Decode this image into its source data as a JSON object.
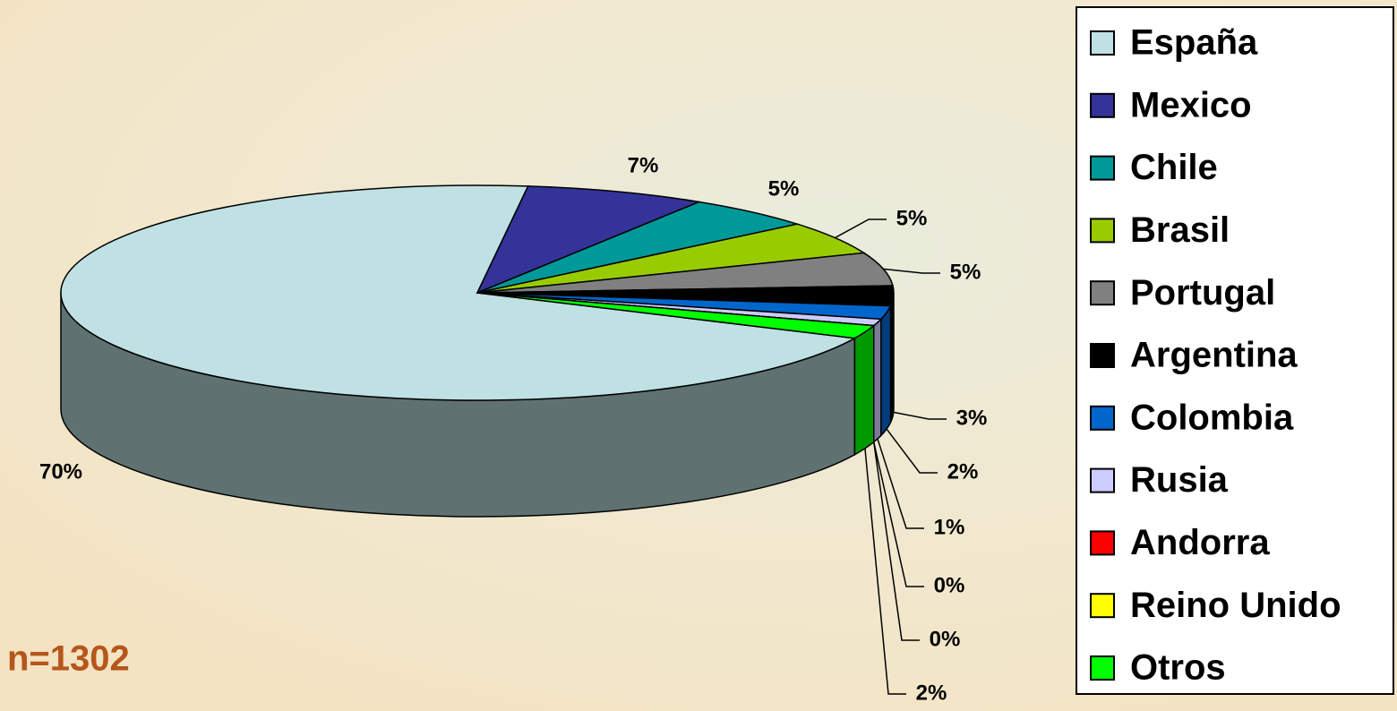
{
  "chart_data": {
    "type": "pie3d",
    "categories": [
      "España",
      "Mexico",
      "Chile",
      "Brasil",
      "Portugal",
      "Argentina",
      "Colombia",
      "Rusia",
      "Andorra",
      "Reino Unido",
      "Otros"
    ],
    "values": [
      70,
      7,
      5,
      5,
      5,
      3,
      2,
      1,
      0,
      0,
      2
    ],
    "value_labels": [
      "70%",
      "7%",
      "5%",
      "5%",
      "5%",
      "3%",
      "2%",
      "1%",
      "0%",
      "0%",
      "2%"
    ],
    "colors": [
      "#bfe1e3",
      "#333399",
      "#009999",
      "#99cc00",
      "#808080",
      "#000000",
      "#0066cc",
      "#ccccff",
      "#ff0000",
      "#ffff00",
      "#00ff00"
    ],
    "annotation": "n=1302",
    "legend": "right"
  }
}
